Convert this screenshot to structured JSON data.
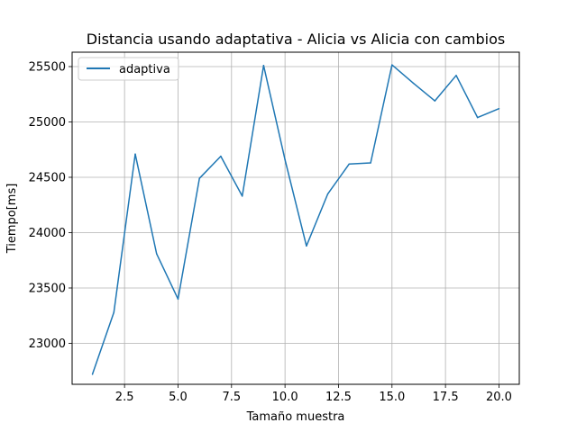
{
  "chart_data": {
    "type": "line",
    "title": "Distancia usando adaptativa - Alicia vs Alicia con cambios",
    "xlabel": "Tamaño muestra",
    "ylabel": "Tiempo[ms]",
    "xlim": [
      0.05,
      20.95
    ],
    "ylim": [
      22630,
      25630
    ],
    "x_ticks": [
      2.5,
      5.0,
      7.5,
      10.0,
      12.5,
      15.0,
      17.5,
      20.0
    ],
    "x_tick_labels": [
      "2.5",
      "5.0",
      "7.5",
      "10.0",
      "12.5",
      "15.0",
      "17.5",
      "20.0"
    ],
    "y_ticks": [
      23000,
      23500,
      24000,
      24500,
      25000,
      25500
    ],
    "y_tick_labels": [
      "23000",
      "23500",
      "24000",
      "24500",
      "25000",
      "25500"
    ],
    "grid": true,
    "legend_position": "top-left",
    "series": [
      {
        "name": "adaptiva",
        "color": "#1f77b4",
        "x": [
          1,
          2,
          3,
          4,
          5,
          6,
          7,
          8,
          9,
          10,
          11,
          12,
          13,
          14,
          15,
          16,
          17,
          18,
          19,
          20
        ],
        "y": [
          22720,
          23280,
          24710,
          23810,
          23400,
          24490,
          24690,
          24330,
          25510,
          24660,
          23880,
          24350,
          24620,
          24630,
          25515,
          25350,
          25190,
          25420,
          25040,
          25120
        ]
      }
    ]
  }
}
